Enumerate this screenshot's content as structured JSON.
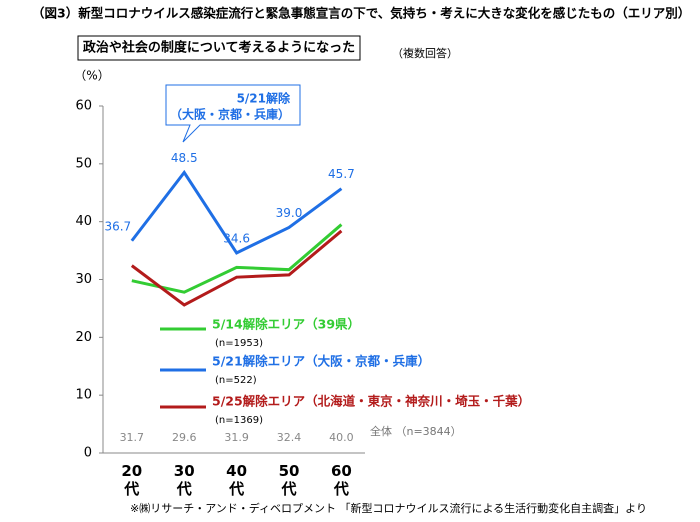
{
  "chart_data": {
    "type": "line",
    "title": "（図3）新型コロナウイルス感染症流行と緊急事態宣言の下で、気持ち・考えに大きな変化を感じたもの（エリア別）",
    "subtitle": "政治や社会の制度について考えるようになった",
    "note": "（複数回答）",
    "y_label": "（%）",
    "categories": [
      "20代",
      "30代",
      "40代",
      "50代",
      "60代"
    ],
    "ylim": [
      0,
      60
    ],
    "yticks": [
      0,
      10,
      20,
      30,
      40,
      50,
      60
    ],
    "series": [
      {
        "name": "5/14解除エリア（39県）",
        "n": "(n=1953)",
        "color": "#33cc33",
        "values": [
          29.8,
          27.8,
          32.1,
          31.7,
          39.5
        ]
      },
      {
        "name": "5/21解除エリア（大阪・京都・兵庫）",
        "n": "(n=522)",
        "color": "#1f6fe5",
        "values": [
          36.7,
          48.5,
          34.6,
          39,
          45.7
        ],
        "value_labels": [
          "36.7",
          "48.5",
          "34.6",
          "39.0",
          "45.7"
        ]
      },
      {
        "name": "5/25解除エリア（北海道・東京・神奈川・埼玉・千葉）",
        "n": "(n=1369)",
        "color": "#b31b1b",
        "values": [
          32.4,
          25.6,
          30.4,
          30.8,
          38.4
        ]
      }
    ],
    "total": {
      "label": "全体 （n=3844）",
      "values": [
        31.7,
        29.6,
        31.9,
        32.4,
        40
      ],
      "value_labels": [
        "31.7",
        "29.6",
        "31.9",
        "32.4",
        "40.0"
      ]
    },
    "callout": [
      "5/21解除",
      "（大阪・京都・兵庫）"
    ],
    "source": "※㈱リサーチ・アンド・ディベロプメント 「新型コロナウイルス流行による生活行動変化自主調査」より"
  }
}
